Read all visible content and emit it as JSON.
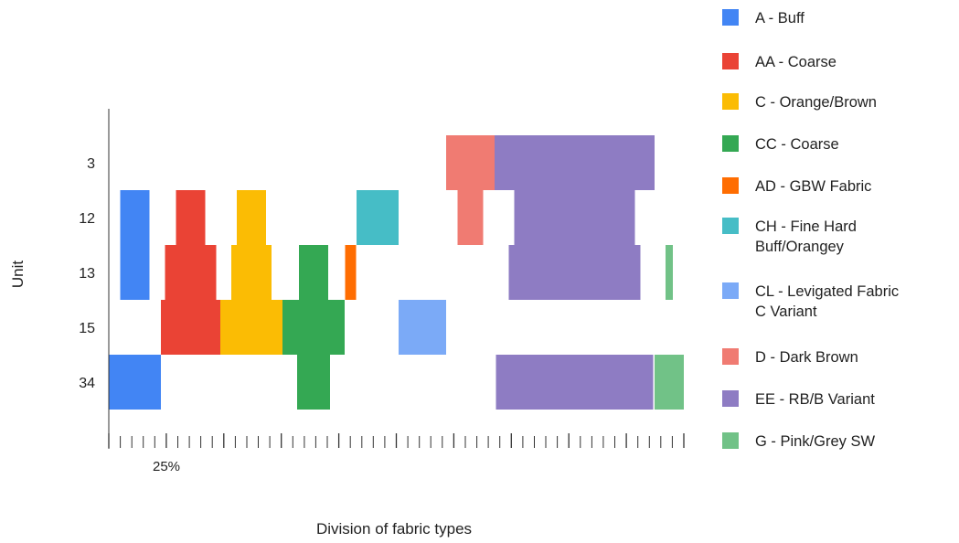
{
  "chart_data": {
    "type": "bar",
    "orientation": "horizontal",
    "layout": "centered-stacked-columns",
    "ylabel": "Unit",
    "xlabel": "Division of fabric types",
    "categories": [
      "3",
      "12",
      "13",
      "15",
      "34"
    ],
    "tick_labels": [
      "25%"
    ],
    "legend_position": "right",
    "series": [
      {
        "name": "A - Buff",
        "color": "#4285f4",
        "values": [
          0,
          8,
          8,
          0,
          17
        ]
      },
      {
        "name": "AA - Coarse",
        "color": "#ea4335",
        "values": [
          0,
          8,
          14,
          20,
          0
        ]
      },
      {
        "name": "C - Orange/Brown",
        "color": "#fbbc04",
        "values": [
          0,
          8,
          11,
          20,
          0
        ]
      },
      {
        "name": "CC - Coarse",
        "color": "#34a853",
        "values": [
          0,
          0,
          8,
          19,
          9
        ]
      },
      {
        "name": "AD - GBW Fabric",
        "color": "#ff6d01",
        "values": [
          0,
          0,
          3,
          0,
          0
        ]
      },
      {
        "name": "CH - Fine Hard\nBuff/Orangey",
        "color": "#46bdc6",
        "values": [
          0,
          16,
          0,
          0,
          0
        ]
      },
      {
        "name": "CL - Levigated Fabric\nC Variant",
        "color": "#7baaf7",
        "values": [
          0,
          0,
          0,
          20,
          0
        ]
      },
      {
        "name": "D - Dark Brown",
        "color": "#f07b72",
        "values": [
          16,
          7,
          0,
          0,
          0
        ]
      },
      {
        "name": "EE - RB/B Variant",
        "color": "#8e7cc3",
        "values": [
          63,
          33,
          36,
          0,
          43
        ]
      },
      {
        "name": "G - Pink/Grey SW",
        "color": "#71c287",
        "values": [
          0,
          0,
          2,
          0,
          9
        ]
      }
    ]
  }
}
